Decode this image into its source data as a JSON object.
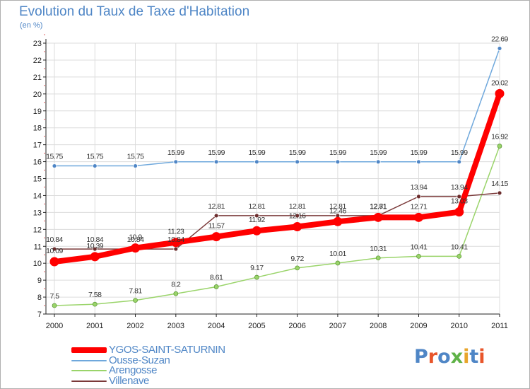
{
  "header": {
    "title": "Evolution du Taux de Taxe d'Habitation",
    "unit": "(en %)"
  },
  "chart_data": {
    "type": "line",
    "title": "Evolution du Taux de Taxe d'Habitation",
    "ylabel": "(en %)",
    "xlabel": "",
    "x": [
      "2000",
      "2001",
      "2002",
      "2003",
      "2004",
      "2005",
      "2006",
      "2007",
      "2008",
      "2009",
      "2010",
      "2011"
    ],
    "ylim": [
      7,
      23
    ],
    "yticks": [
      7,
      8,
      9,
      10,
      11,
      12,
      13,
      14,
      15,
      16,
      17,
      18,
      19,
      20,
      21,
      22,
      23
    ],
    "grid": true,
    "legend_position": "bottom-left",
    "series": [
      {
        "name": "YGOS-SAINT-SATURNIN",
        "color": "#ff0000",
        "values": [
          10.09,
          10.39,
          10.9,
          11.23,
          11.57,
          11.92,
          12.16,
          12.46,
          12.71,
          12.71,
          13.03,
          20.02
        ],
        "labels": [
          "10.09",
          "10.39",
          "10.9",
          "11.23",
          "11.57",
          "11.92",
          "12.16",
          "12.46",
          "12.71",
          "12.71",
          "13.03",
          "20.02"
        ]
      },
      {
        "name": "Ousse-Suzan",
        "color": "#6fa8dc",
        "values": [
          15.75,
          15.75,
          15.75,
          15.99,
          15.99,
          15.99,
          15.99,
          15.99,
          15.99,
          15.99,
          15.99,
          22.69
        ],
        "labels": [
          "15.75",
          "15.75",
          "15.75",
          "15.99",
          "15.99",
          "15.99",
          "15.99",
          "15.99",
          "15.99",
          "15.99",
          "15.99",
          "22.69"
        ]
      },
      {
        "name": "Arengosse",
        "color": "#9ad46a",
        "values": [
          7.5,
          7.58,
          7.81,
          8.2,
          8.61,
          9.17,
          9.72,
          10.01,
          10.31,
          10.41,
          10.41,
          16.92
        ],
        "labels": [
          "7.5",
          "7.58",
          "7.81",
          "8.2",
          "8.61",
          "9.17",
          "9.72",
          "10.01",
          "10.31",
          "10.41",
          "10.41",
          "16.92"
        ]
      },
      {
        "name": "Villenave",
        "color": "#7b3a3a",
        "values": [
          10.84,
          10.84,
          10.84,
          10.84,
          12.81,
          12.81,
          12.81,
          12.81,
          12.81,
          13.94,
          13.94,
          14.15
        ],
        "labels": [
          "10.84",
          "10.84",
          "10.84",
          "10.84",
          "12.81",
          "12.81",
          "12.81",
          "12.81",
          "12.81",
          "13.94",
          "13.94",
          "14.15"
        ]
      }
    ]
  },
  "legend": {
    "items": [
      {
        "label": "YGOS-SAINT-SATURNIN",
        "color": "#ff0000"
      },
      {
        "label": "Ousse-Suzan",
        "color": "#6fa8dc"
      },
      {
        "label": "Arengosse",
        "color": "#9ad46a"
      },
      {
        "label": "Villenave",
        "color": "#7b3a3a"
      }
    ]
  },
  "brand": {
    "logo_text": "Proxiti",
    "letter_colors": [
      "#4f86c6",
      "#e8552a",
      "#4f86c6",
      "#5fb247",
      "#e8a52a",
      "#4f86c6",
      "#e8552a"
    ]
  }
}
